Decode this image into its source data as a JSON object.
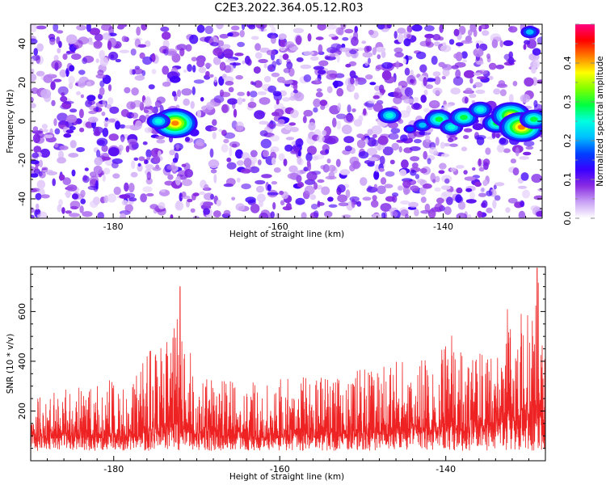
{
  "title": "C2E3.2022.364.05.12.R03",
  "chart_data": [
    {
      "type": "heatmap",
      "title": "C2E3.2022.364.05.12.R03",
      "xlabel": "Height of straight line (km)",
      "ylabel": "Frequency (Hz)",
      "xlim": [
        -190,
        -128
      ],
      "ylim": [
        -50,
        50
      ],
      "xticks": [
        -180,
        -160,
        -140
      ],
      "yticks": [
        -40,
        -20,
        0,
        20,
        40
      ],
      "colorbar": {
        "label": "Normalized spectral amplitude",
        "range": [
          0,
          0.5
        ],
        "ticks": [
          0.0,
          0.1,
          0.2,
          0.3,
          0.4
        ],
        "colors": [
          "#ffffff",
          "#c9a3f5",
          "#8a2be2",
          "#3a00ff",
          "#0040ff",
          "#00bfff",
          "#00ffe0",
          "#00ff40",
          "#80ff00",
          "#ffff00",
          "#ff8000",
          "#ff0000",
          "#ff0080"
        ]
      },
      "hotspots": [
        {
          "x": -172.5,
          "y": -1,
          "value": 0.42
        },
        {
          "x": -174.5,
          "y": 0,
          "value": 0.22
        },
        {
          "x": -146.5,
          "y": 3,
          "value": 0.2
        },
        {
          "x": -142.5,
          "y": -2,
          "value": 0.15
        },
        {
          "x": -140.5,
          "y": 1,
          "value": 0.25
        },
        {
          "x": -139.0,
          "y": -3,
          "value": 0.22
        },
        {
          "x": -137.5,
          "y": 2,
          "value": 0.3
        },
        {
          "x": -135.5,
          "y": 6,
          "value": 0.22
        },
        {
          "x": -133.5,
          "y": -1,
          "value": 0.3
        },
        {
          "x": -131.8,
          "y": 3,
          "value": 0.4
        },
        {
          "x": -130.5,
          "y": -3,
          "value": 0.45
        },
        {
          "x": -129.0,
          "y": 1,
          "value": 0.3
        },
        {
          "x": -144.0,
          "y": -4,
          "value": 0.12
        },
        {
          "x": -129.5,
          "y": 46,
          "value": 0.15
        }
      ]
    },
    {
      "type": "line",
      "xlabel": "Height of straight line (km)",
      "ylabel": "SNR (10 * v/v)",
      "xlim": [
        -190,
        -128
      ],
      "ylim": [
        0,
        780
      ],
      "xticks": [
        -180,
        -160,
        -140
      ],
      "yticks": [
        200,
        400,
        600
      ],
      "color": "#ee2222",
      "envelope": [
        {
          "x": -190,
          "base": 130,
          "peak": 260
        },
        {
          "x": -185,
          "base": 130,
          "peak": 300
        },
        {
          "x": -182,
          "base": 130,
          "peak": 350
        },
        {
          "x": -178,
          "base": 130,
          "peak": 300
        },
        {
          "x": -175,
          "base": 150,
          "peak": 490
        },
        {
          "x": -173,
          "base": 160,
          "peak": 510
        },
        {
          "x": -172,
          "base": 170,
          "peak": 700
        },
        {
          "x": -170,
          "base": 140,
          "peak": 330
        },
        {
          "x": -165,
          "base": 130,
          "peak": 320
        },
        {
          "x": -160,
          "base": 130,
          "peak": 330
        },
        {
          "x": -155,
          "base": 135,
          "peak": 340
        },
        {
          "x": -150,
          "base": 140,
          "peak": 380
        },
        {
          "x": -146,
          "base": 150,
          "peak": 400
        },
        {
          "x": -142,
          "base": 165,
          "peak": 420
        },
        {
          "x": -140,
          "base": 175,
          "peak": 540
        },
        {
          "x": -137,
          "base": 170,
          "peak": 440
        },
        {
          "x": -135,
          "base": 180,
          "peak": 450
        },
        {
          "x": -133,
          "base": 210,
          "peak": 620
        },
        {
          "x": -131.5,
          "base": 230,
          "peak": 660
        },
        {
          "x": -130,
          "base": 240,
          "peak": 640
        },
        {
          "x": -129,
          "base": 250,
          "peak": 780
        },
        {
          "x": -128,
          "base": 170,
          "peak": 380
        }
      ]
    }
  ]
}
